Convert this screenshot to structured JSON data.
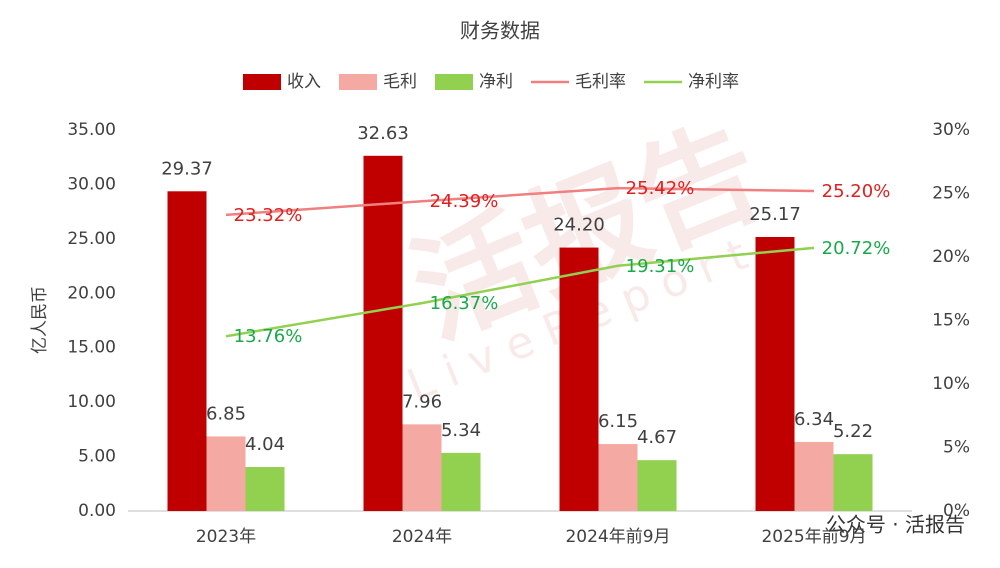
{
  "chart_data": {
    "type": "bar",
    "title": "财务数据",
    "y_label": "亿人民币",
    "categories": [
      "2023年",
      "2024年",
      "2024年前9月",
      "2025年前9月"
    ],
    "series": [
      {
        "name": "收入",
        "type": "bar",
        "color": "#c00000",
        "values": [
          29.37,
          32.63,
          24.2,
          25.17
        ],
        "value_labels": [
          "29.37",
          "32.63",
          "24.20",
          "25.17"
        ]
      },
      {
        "name": "毛利",
        "type": "bar",
        "color": "#f4aaa2",
        "values": [
          6.85,
          7.96,
          6.15,
          6.34
        ],
        "value_labels": [
          "6.85",
          "7.96",
          "6.15",
          "6.34"
        ]
      },
      {
        "name": "净利",
        "type": "bar",
        "color": "#92d050",
        "values": [
          4.04,
          5.34,
          4.67,
          5.22
        ],
        "value_labels": [
          "4.04",
          "5.34",
          "4.67",
          "5.22"
        ]
      },
      {
        "name": "毛利率",
        "type": "line",
        "axis": "y2",
        "color": "#f08080",
        "label_color": "#e02020",
        "values": [
          23.32,
          24.39,
          25.42,
          25.2
        ],
        "value_labels": [
          "23.32%",
          "24.39%",
          "25.42%",
          "25.20%"
        ]
      },
      {
        "name": "净利率",
        "type": "line",
        "axis": "y2",
        "color": "#92d050",
        "label_color": "#1aa84a",
        "values": [
          13.76,
          16.37,
          19.31,
          20.72
        ],
        "value_labels": [
          "13.76%",
          "16.37%",
          "19.31%",
          "20.72%"
        ]
      }
    ],
    "ylim": [
      0,
      35
    ],
    "yticks": [
      {
        "value": 0,
        "label": "0.00"
      },
      {
        "value": 5,
        "label": "5.00"
      },
      {
        "value": 10,
        "label": "10.00"
      },
      {
        "value": 15,
        "label": "15.00"
      },
      {
        "value": 20,
        "label": "20.00"
      },
      {
        "value": 25,
        "label": "25.00"
      },
      {
        "value": 30,
        "label": "30.00"
      },
      {
        "value": 35,
        "label": "35.00"
      }
    ],
    "y2lim": [
      0,
      30
    ],
    "y2ticks": [
      {
        "value": 0,
        "label": "0%"
      },
      {
        "value": 5,
        "label": "5%"
      },
      {
        "value": 10,
        "label": "10%"
      },
      {
        "value": 15,
        "label": "15%"
      },
      {
        "value": 20,
        "label": "20%"
      },
      {
        "value": 25,
        "label": "25%"
      },
      {
        "value": 30,
        "label": "30%"
      }
    ],
    "grid": false,
    "legend": "top",
    "watermark": [
      "活报告",
      "LiveReport"
    ],
    "footer": "公众号 · 活报告"
  }
}
